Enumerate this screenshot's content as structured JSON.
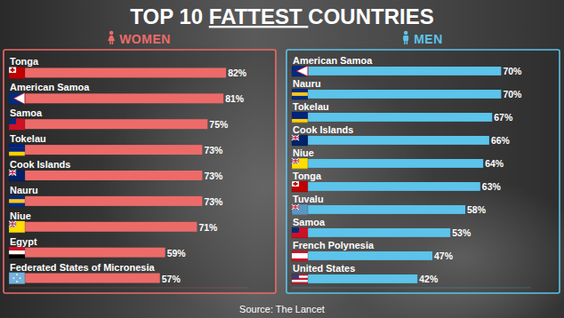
{
  "title": "TOP 10 FATTEST COUNTRIES",
  "source": "Source: The Lancet",
  "chart_data": [
    {
      "type": "bar",
      "title": "WOMEN",
      "orientation": "horizontal",
      "categories": [
        "Tonga",
        "American Samoa",
        "Samoa",
        "Tokelau",
        "Cook Islands",
        "Nauru",
        "Niue",
        "Egypt",
        "Federated States of Micronesia"
      ],
      "values": [
        82,
        81,
        75,
        73,
        73,
        73,
        71,
        59,
        57
      ],
      "value_labels": [
        "82%",
        "81%",
        "75%",
        "73%",
        "73%",
        "73%",
        "71%",
        "59%",
        "57%"
      ],
      "data_labels": true,
      "tick_labels": "y",
      "color": "#ec6b69",
      "xlim": [
        0,
        90
      ]
    },
    {
      "type": "bar",
      "title": "MEN",
      "orientation": "horizontal",
      "categories": [
        "American Samoa",
        "Nauru",
        "Tokelau",
        "Cook Islands",
        "Niue",
        "Tonga",
        "Tuvalu",
        "Samoa",
        "French Polynesia",
        "United States"
      ],
      "values": [
        70,
        70,
        67,
        66,
        64,
        63,
        58,
        53,
        47,
        42
      ],
      "value_labels": [
        "70%",
        "70%",
        "67%",
        "66%",
        "64%",
        "63%",
        "58%",
        "53%",
        "47%",
        "42%"
      ],
      "data_labels": true,
      "tick_labels": "y",
      "color": "#5cc3ea",
      "xlim": [
        0,
        80
      ]
    }
  ]
}
